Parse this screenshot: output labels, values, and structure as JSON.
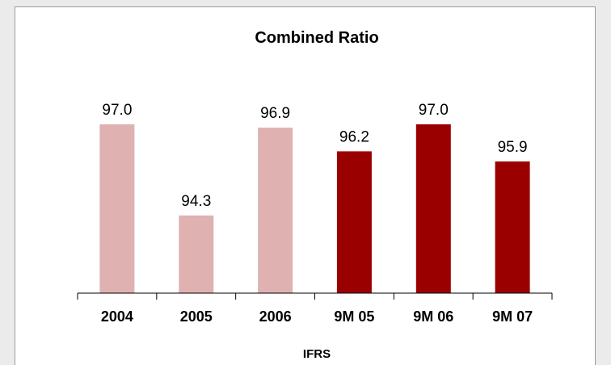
{
  "chart_data": {
    "type": "bar",
    "title": "Combined Ratio",
    "xlabel": "IFRS",
    "ylabel": "",
    "categories": [
      "2004",
      "2005",
      "2006",
      "9M 05",
      "9M 06",
      "9M 07"
    ],
    "values": [
      97.0,
      94.3,
      96.9,
      96.2,
      97.0,
      95.9
    ],
    "value_labels": [
      "97.0",
      "94.3",
      "96.9",
      "96.2",
      "97.0",
      "95.9"
    ],
    "colors": [
      "#dfb1b1",
      "#dfb1b1",
      "#dfb1b1",
      "#9b0000",
      "#9b0000",
      "#9b0000"
    ],
    "ylim": [
      92.0,
      97.5
    ],
    "grid": false,
    "legend": "none"
  }
}
